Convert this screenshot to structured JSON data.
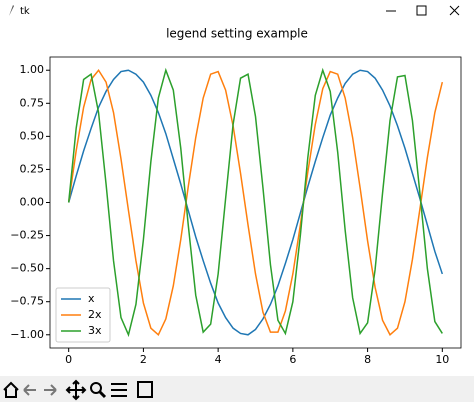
{
  "window": {
    "title": "tk"
  },
  "chart_data": {
    "type": "line",
    "title": "legend setting example",
    "x": [
      0,
      0.2,
      0.4,
      0.6,
      0.8,
      1,
      1.2,
      1.4,
      1.6,
      1.8,
      2,
      2.2,
      2.4,
      2.6,
      2.8,
      3,
      3.2,
      3.4,
      3.6,
      3.8,
      4,
      4.2,
      4.4,
      4.6,
      4.8,
      5,
      5.2,
      5.4,
      5.6,
      5.8,
      6,
      6.2,
      6.4,
      6.6,
      6.8,
      7,
      7.2,
      7.4,
      7.6,
      7.8,
      8,
      8.2,
      8.4,
      8.6,
      8.8,
      9,
      9.2,
      9.4,
      9.6,
      9.8,
      10
    ],
    "series": [
      {
        "name": "x",
        "color": "#1f77b4",
        "values": [
          0,
          0.2,
          0.39,
          0.56,
          0.72,
          0.84,
          0.93,
          0.99,
          1,
          0.97,
          0.91,
          0.81,
          0.68,
          0.52,
          0.33,
          0.14,
          -0.06,
          -0.26,
          -0.44,
          -0.61,
          -0.76,
          -0.87,
          -0.95,
          -0.99,
          -1,
          -0.96,
          -0.88,
          -0.77,
          -0.63,
          -0.46,
          -0.28,
          -0.08,
          0.12,
          0.31,
          0.49,
          0.66,
          0.79,
          0.9,
          0.97,
          1,
          0.99,
          0.94,
          0.85,
          0.73,
          0.58,
          0.41,
          0.22,
          0.03,
          -0.17,
          -0.37,
          -0.54
        ]
      },
      {
        "name": "2x",
        "color": "#ff7f0e",
        "values": [
          0,
          0.39,
          0.72,
          0.93,
          1,
          0.91,
          0.68,
          0.33,
          -0.06,
          -0.44,
          -0.76,
          -0.95,
          -1,
          -0.88,
          -0.63,
          -0.28,
          0.12,
          0.49,
          0.79,
          0.97,
          0.99,
          0.85,
          0.58,
          0.22,
          -0.17,
          -0.54,
          -0.83,
          -0.98,
          -0.98,
          -0.82,
          -0.54,
          -0.17,
          0.23,
          0.59,
          0.86,
          0.99,
          0.97,
          0.79,
          0.49,
          0.11,
          -0.29,
          -0.64,
          -0.89,
          -1,
          -0.95,
          -0.75,
          -0.43,
          -0.05,
          0.34,
          0.68,
          0.91
        ]
      },
      {
        "name": "3x",
        "color": "#2ca02c",
        "values": [
          0,
          0.56,
          0.93,
          0.97,
          0.68,
          0.14,
          -0.44,
          -0.87,
          -1,
          -0.77,
          -0.28,
          0.31,
          0.79,
          1,
          0.85,
          0.41,
          -0.17,
          -0.7,
          -0.98,
          -0.92,
          -0.54,
          0.03,
          0.59,
          0.94,
          0.97,
          0.65,
          0.11,
          -0.47,
          -0.89,
          -0.99,
          -0.75,
          -0.25,
          0.34,
          0.81,
          1,
          0.84,
          0.38,
          -0.21,
          -0.72,
          -0.99,
          -0.91,
          -0.51,
          0.07,
          0.62,
          0.95,
          0.96,
          0.62,
          0.07,
          -0.5,
          -0.9,
          -0.99
        ]
      }
    ],
    "xlim": [
      -0.5,
      10.5
    ],
    "xticks": [
      0,
      2,
      4,
      6,
      8,
      10
    ],
    "ylim": [
      -1.1,
      1.1
    ],
    "yticks": [
      {
        "value": -1,
        "label": "−1.00"
      },
      {
        "value": -0.75,
        "label": "−0.75"
      },
      {
        "value": -0.5,
        "label": "−0.50"
      },
      {
        "value": -0.25,
        "label": "−0.25"
      },
      {
        "value": 0,
        "label": "0.00"
      },
      {
        "value": 0.25,
        "label": "0.25"
      },
      {
        "value": 0.5,
        "label": "0.50"
      },
      {
        "value": 0.75,
        "label": "0.75"
      },
      {
        "value": 1,
        "label": "1.00"
      }
    ],
    "legend": "lower left"
  }
}
